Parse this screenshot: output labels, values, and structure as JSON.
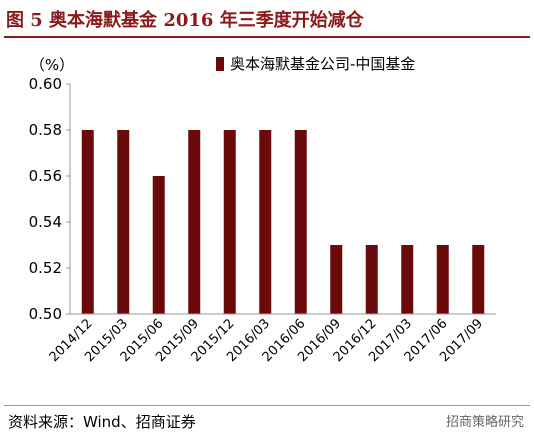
{
  "header": {
    "title": "图 5  奥本海默基金 2016 年三季度开始减仓"
  },
  "footer": {
    "source": "资料来源：Wind、招商证券",
    "watermark": "招商策略研究"
  },
  "colors": {
    "title": "#8B1A1A",
    "bar": "#6B0A0A",
    "axis": "#999999"
  },
  "chart_data": {
    "type": "bar",
    "unit_label": "（%）",
    "categories": [
      "2014/12",
      "2015/03",
      "2015/06",
      "2015/09",
      "2015/12",
      "2016/03",
      "2016/06",
      "2016/09",
      "2016/12",
      "2017/03",
      "2017/06",
      "2017/09"
    ],
    "series": [
      {
        "name": "奥本海默基金公司-中国基金",
        "values": [
          0.58,
          0.58,
          0.56,
          0.58,
          0.58,
          0.58,
          0.58,
          0.53,
          0.53,
          0.53,
          0.53,
          0.53
        ]
      }
    ],
    "ylim": [
      0.5,
      0.6
    ],
    "yticks": [
      "0.50",
      "0.52",
      "0.54",
      "0.56",
      "0.58",
      "0.60"
    ],
    "legend_position": "top",
    "grid": false
  }
}
